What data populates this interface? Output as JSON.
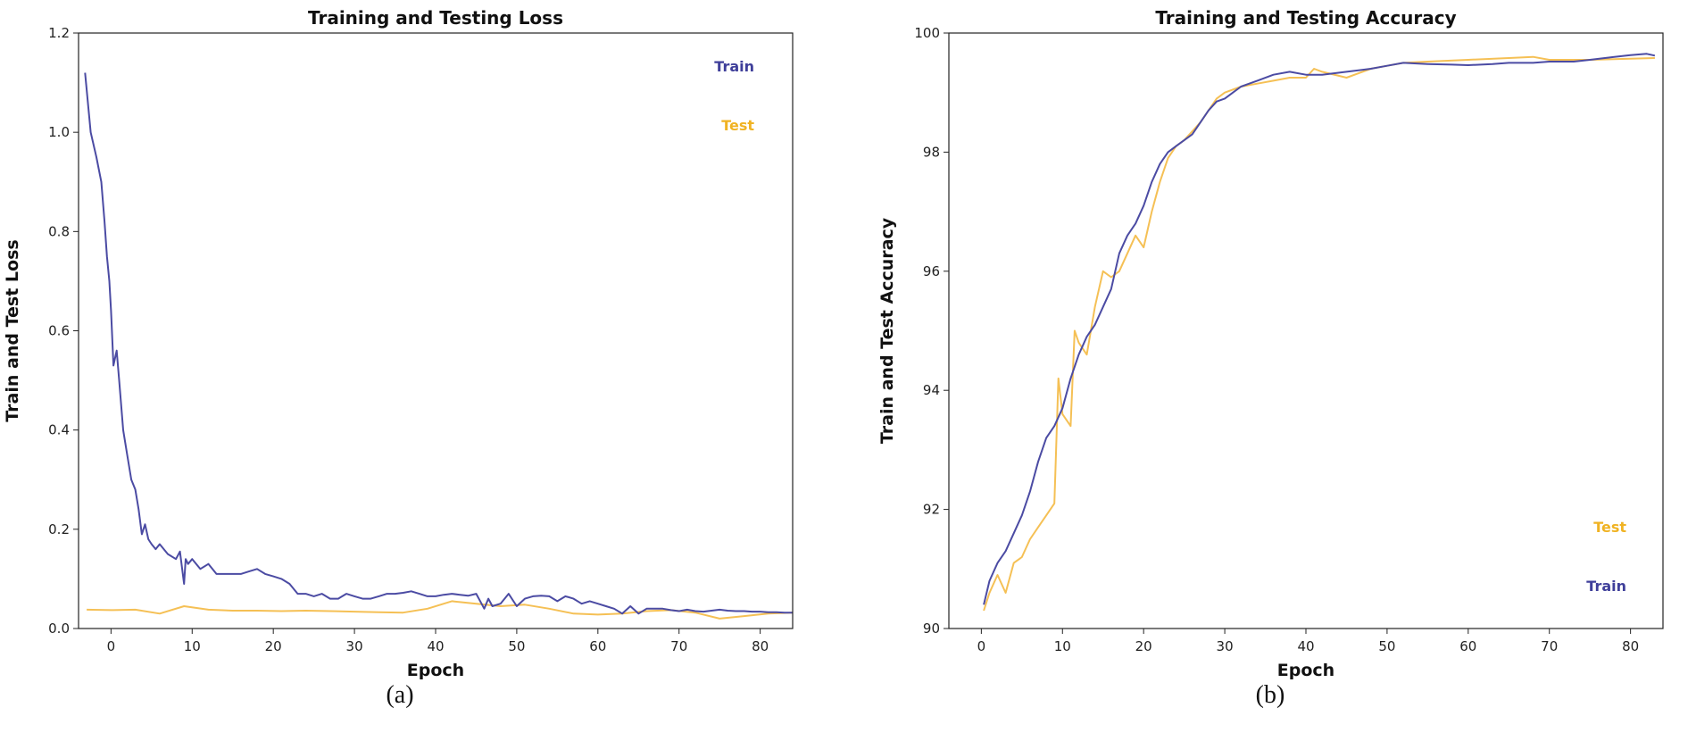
{
  "chart_data": [
    {
      "type": "line",
      "panel_label": "(a)",
      "title": "Training and Testing Loss",
      "xlabel": "Epoch",
      "ylabel": "Train and Test Loss",
      "ylabel_color": "#c0392b",
      "ytick_color": "#c0392b",
      "xlim": [
        -4,
        84
      ],
      "ylim": [
        0,
        1.2
      ],
      "xticks": [
        0,
        10,
        20,
        30,
        40,
        50,
        60,
        70,
        80
      ],
      "yticks": [
        0.0,
        0.2,
        0.4,
        0.6,
        0.8,
        1.0,
        1.2
      ],
      "ytick_decimals": 1,
      "grid": false,
      "legend": "top-right",
      "legend_labels": [
        {
          "text": "Train",
          "color": "#3f3f9a"
        },
        {
          "text": "Test",
          "color": "#f0b323"
        }
      ],
      "series": [
        {
          "name": "Train",
          "color": "#4b4ba3",
          "x": [
            -3.2,
            -2.5,
            -1.8,
            -1.2,
            -0.8,
            -0.5,
            -0.2,
            0.0,
            0.3,
            0.7,
            1.0,
            1.5,
            2.0,
            2.5,
            3.0,
            3.4,
            3.8,
            4.2,
            4.6,
            5.0,
            5.5,
            6.0,
            7.0,
            8.0,
            8.5,
            9.0,
            9.2,
            9.5,
            10.0,
            11.0,
            12.0,
            13.0,
            14.0,
            15.0,
            16.0,
            17.0,
            18.0,
            19.0,
            20.0,
            21.0,
            22.0,
            23.0,
            24.0,
            25.0,
            26.0,
            27.0,
            28.0,
            29.0,
            30.0,
            31.0,
            32.0,
            33.0,
            34.0,
            35.0,
            36.0,
            37.0,
            38.0,
            39.0,
            40.0,
            41.0,
            42.0,
            43.0,
            44.0,
            45.0,
            46.0,
            46.5,
            47.0,
            48.0,
            49.0,
            50.0,
            51.0,
            52.0,
            53.0,
            54.0,
            55.0,
            56.0,
            57.0,
            58.0,
            59.0,
            60.0,
            61.0,
            62.0,
            63.0,
            64.0,
            65.0,
            66.0,
            67.0,
            68.0,
            69.0,
            70.0,
            71.0,
            72.0,
            73.0,
            74.0,
            75.0,
            76.0,
            77.0,
            78.0,
            79.0,
            80.0,
            81.0,
            82.0,
            83.0,
            84.0
          ],
          "y": [
            1.12,
            1.0,
            0.95,
            0.9,
            0.82,
            0.75,
            0.7,
            0.64,
            0.53,
            0.56,
            0.5,
            0.4,
            0.35,
            0.3,
            0.28,
            0.24,
            0.19,
            0.21,
            0.18,
            0.17,
            0.16,
            0.17,
            0.15,
            0.14,
            0.155,
            0.09,
            0.14,
            0.13,
            0.14,
            0.12,
            0.13,
            0.11,
            0.11,
            0.11,
            0.11,
            0.115,
            0.12,
            0.11,
            0.105,
            0.1,
            0.09,
            0.07,
            0.07,
            0.065,
            0.07,
            0.06,
            0.06,
            0.07,
            0.065,
            0.06,
            0.06,
            0.065,
            0.07,
            0.07,
            0.072,
            0.075,
            0.07,
            0.065,
            0.065,
            0.068,
            0.07,
            0.068,
            0.066,
            0.07,
            0.04,
            0.06,
            0.045,
            0.05,
            0.07,
            0.045,
            0.06,
            0.065,
            0.066,
            0.065,
            0.055,
            0.065,
            0.06,
            0.05,
            0.055,
            0.05,
            0.045,
            0.04,
            0.03,
            0.045,
            0.03,
            0.04,
            0.04,
            0.04,
            0.037,
            0.035,
            0.038,
            0.035,
            0.034,
            0.036,
            0.038,
            0.036,
            0.035,
            0.035,
            0.034,
            0.034,
            0.033,
            0.033,
            0.032,
            0.032
          ]
        },
        {
          "name": "Test",
          "color": "#f5c055",
          "x": [
            -3.0,
            0.0,
            3.0,
            6.0,
            9.0,
            12.0,
            15.0,
            18.0,
            21.0,
            24.0,
            27.0,
            30.0,
            33.0,
            36.0,
            39.0,
            42.0,
            45.0,
            48.0,
            51.0,
            54.0,
            57.0,
            60.0,
            63.0,
            66.0,
            69.0,
            72.0,
            75.0,
            78.0,
            81.0,
            84.0
          ],
          "y": [
            0.038,
            0.037,
            0.038,
            0.03,
            0.045,
            0.038,
            0.036,
            0.036,
            0.035,
            0.036,
            0.035,
            0.034,
            0.033,
            0.032,
            0.04,
            0.055,
            0.05,
            0.045,
            0.048,
            0.04,
            0.03,
            0.028,
            0.03,
            0.035,
            0.037,
            0.032,
            0.02,
            0.025,
            0.03,
            0.032
          ]
        }
      ]
    },
    {
      "type": "line",
      "panel_label": "(b)",
      "title": "Training and Testing Accuracy",
      "xlabel": "Epoch",
      "ylabel": "Train and Test Accuracy",
      "ylabel_color": "#1f77b4",
      "ytick_color": "#1f77b4",
      "xlim": [
        -4,
        84
      ],
      "ylim": [
        90,
        100
      ],
      "xticks": [
        0,
        10,
        20,
        30,
        40,
        50,
        60,
        70,
        80
      ],
      "yticks": [
        90,
        92,
        94,
        96,
        98,
        100
      ],
      "ytick_decimals": 0,
      "grid": false,
      "legend": "bottom-right",
      "legend_labels": [
        {
          "text": "Test",
          "color": "#f0b323"
        },
        {
          "text": "Train",
          "color": "#3f3f9a"
        }
      ],
      "series": [
        {
          "name": "Train",
          "color": "#4b4ba3",
          "x": [
            0.3,
            1,
            2,
            3,
            4,
            5,
            6,
            7,
            8,
            9,
            10,
            11,
            12,
            13,
            14,
            15,
            16,
            17,
            18,
            19,
            20,
            21,
            22,
            23,
            24,
            25,
            26,
            27,
            28,
            29,
            30,
            31,
            32,
            34,
            36,
            38,
            40,
            42,
            45,
            48,
            50,
            52,
            55,
            58,
            60,
            63,
            65,
            68,
            70,
            73,
            75,
            78,
            80,
            82,
            83
          ],
          "y": [
            90.4,
            90.8,
            91.1,
            91.3,
            91.6,
            91.9,
            92.3,
            92.8,
            93.2,
            93.4,
            93.7,
            94.2,
            94.6,
            94.9,
            95.1,
            95.4,
            95.7,
            96.3,
            96.6,
            96.8,
            97.1,
            97.5,
            97.8,
            98.0,
            98.1,
            98.2,
            98.3,
            98.5,
            98.7,
            98.85,
            98.9,
            99.0,
            99.1,
            99.2,
            99.3,
            99.35,
            99.3,
            99.3,
            99.35,
            99.4,
            99.45,
            99.5,
            99.48,
            99.47,
            99.46,
            99.48,
            99.5,
            99.5,
            99.52,
            99.52,
            99.55,
            99.6,
            99.63,
            99.65,
            99.62
          ]
        },
        {
          "name": "Test",
          "color": "#f5c055",
          "x": [
            0.3,
            1,
            2,
            3,
            4,
            5,
            6,
            7,
            8,
            9,
            9.5,
            10,
            11,
            11.5,
            12,
            13,
            14,
            15,
            16,
            17,
            18,
            19,
            20,
            21,
            22,
            23,
            24,
            25,
            26,
            27,
            28,
            29,
            30,
            32,
            34,
            36,
            38,
            40,
            41,
            42,
            45,
            48,
            50,
            52,
            55,
            60,
            65,
            68,
            70,
            75,
            80,
            83
          ],
          "y": [
            90.3,
            90.6,
            90.9,
            90.6,
            91.1,
            91.2,
            91.5,
            91.7,
            91.9,
            92.1,
            94.2,
            93.6,
            93.4,
            95.0,
            94.8,
            94.6,
            95.4,
            96.0,
            95.9,
            96.0,
            96.3,
            96.6,
            96.4,
            97.0,
            97.5,
            97.9,
            98.1,
            98.2,
            98.35,
            98.5,
            98.7,
            98.9,
            99.0,
            99.1,
            99.15,
            99.2,
            99.25,
            99.25,
            99.4,
            99.35,
            99.25,
            99.4,
            99.45,
            99.5,
            99.52,
            99.55,
            99.58,
            99.6,
            99.55,
            99.55,
            99.57,
            99.58
          ]
        }
      ]
    }
  ]
}
